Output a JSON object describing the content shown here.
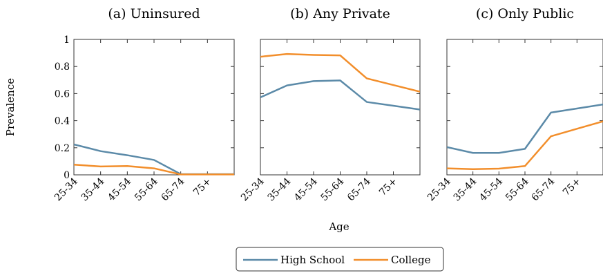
{
  "chart_data": [
    {
      "type": "line",
      "title": "(a) Uninsured",
      "categories": [
        "25-34",
        "35-44",
        "45-54",
        "55-64",
        "65-74",
        "75+"
      ],
      "ylim": [
        0,
        1
      ],
      "yticks": [
        "0",
        "0.2",
        "0.4",
        "0.6",
        "0.8",
        "1"
      ],
      "series": [
        {
          "name": "High School",
          "color": "#5b8aa8",
          "values": [
            0.225,
            0.175,
            0.145,
            0.11,
            0.005,
            0.005
          ]
        },
        {
          "name": "College",
          "color": "#f28e2b",
          "values": [
            0.075,
            0.062,
            0.065,
            0.048,
            0.003,
            0.003
          ]
        }
      ]
    },
    {
      "type": "line",
      "title": "(b) Any Private",
      "categories": [
        "25-34",
        "35-44",
        "45-54",
        "55-64",
        "65-74",
        "75+"
      ],
      "ylim": [
        0,
        1
      ],
      "series": [
        {
          "name": "High School",
          "color": "#5b8aa8",
          "values": [
            0.572,
            0.66,
            0.692,
            0.697,
            0.538,
            0.51
          ]
        },
        {
          "name": "College",
          "color": "#f28e2b",
          "values": [
            0.872,
            0.892,
            0.885,
            0.882,
            0.712,
            0.663
          ]
        }
      ]
    },
    {
      "type": "line",
      "title": "(c) Only Public",
      "categories": [
        "25-34",
        "35-44",
        "45-54",
        "55-64",
        "65-74",
        "75+"
      ],
      "ylim": [
        0,
        1
      ],
      "series": [
        {
          "name": "High School",
          "color": "#5b8aa8",
          "values": [
            0.205,
            0.162,
            0.162,
            0.192,
            0.46,
            0.49
          ]
        },
        {
          "name": "College",
          "color": "#f28e2b",
          "values": [
            0.048,
            0.042,
            0.046,
            0.065,
            0.285,
            0.34
          ]
        }
      ]
    }
  ],
  "ylabel": "Prevalence",
  "xlabel": "Age",
  "legend": {
    "placement": "bottom-center",
    "entries": [
      {
        "label": "High School",
        "color": "#5b8aa8"
      },
      {
        "label": "College",
        "color": "#f28e2b"
      }
    ]
  }
}
